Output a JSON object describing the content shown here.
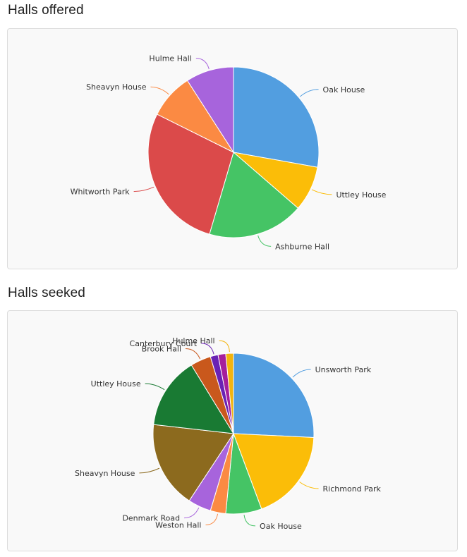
{
  "sections": {
    "offered_title": "Halls offered",
    "seeked_title": "Halls seeked"
  },
  "chart_data": [
    {
      "type": "pie",
      "title": "Halls offered",
      "start_angle_deg": 0,
      "direction": "clockwise",
      "slices": [
        {
          "label": "Oak House",
          "value": 26,
          "color": "#529ee0"
        },
        {
          "label": "Uttley House",
          "value": 8,
          "color": "#fbbd08"
        },
        {
          "label": "Ashburne Hall",
          "value": 17,
          "color": "#45c465"
        },
        {
          "label": "Whitworth Park",
          "value": 26,
          "color": "#db4a4a"
        },
        {
          "label": "Sheavyn House",
          "value": 8,
          "color": "#fb8a43"
        },
        {
          "label": "Hulme Hall",
          "value": 8.5,
          "color": "#a764dc"
        }
      ]
    },
    {
      "type": "pie",
      "title": "Halls seeked",
      "start_angle_deg": 0,
      "direction": "clockwise",
      "slices": [
        {
          "label": "Unsworth Park",
          "value": 25,
          "color": "#529ee0"
        },
        {
          "label": "Richmond Park",
          "value": 18,
          "color": "#fbbd08"
        },
        {
          "label": "Oak House",
          "value": 7,
          "color": "#45c465"
        },
        {
          "label": "Weston Hall",
          "value": 3,
          "color": "#fb8a43"
        },
        {
          "label": "Denmark Road",
          "value": 4.5,
          "color": "#a764dc"
        },
        {
          "label": "Sheavyn House",
          "value": 17,
          "color": "#8c6a1e"
        },
        {
          "label": "Uttley House",
          "value": 14,
          "color": "#197a33"
        },
        {
          "label": "Brook Hall",
          "value": 4,
          "color": "#c9581c"
        },
        {
          "label": "Canterbury Court",
          "value": 1.5,
          "color": "#6a22b4"
        },
        {
          "label": "",
          "value": 1.5,
          "color": "#a51f9c"
        },
        {
          "label": "Hulme Hall",
          "value": 1.5,
          "color": "#f3b40d"
        }
      ]
    }
  ]
}
